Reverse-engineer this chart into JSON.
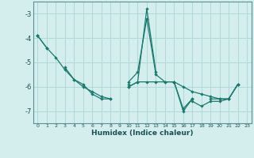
{
  "xlabel": "Humidex (Indice chaleur)",
  "background_color": "#d4eeee",
  "grid_color": "#aed8d8",
  "line_color": "#1a7a6e",
  "x_values": [
    0,
    1,
    2,
    3,
    4,
    5,
    6,
    7,
    8,
    9,
    10,
    11,
    12,
    13,
    14,
    15,
    16,
    17,
    18,
    19,
    20,
    21,
    22,
    23
  ],
  "series1": [
    -3.9,
    -4.4,
    -4.8,
    -5.3,
    -5.7,
    -5.9,
    -6.3,
    -6.5,
    -6.5,
    null,
    -5.8,
    -5.4,
    -3.2,
    -5.5,
    -5.8,
    -5.8,
    -6.9,
    -6.5,
    null,
    null,
    null,
    null,
    null,
    null
  ],
  "series2": [
    -3.9,
    null,
    null,
    -5.2,
    -5.7,
    -6.0,
    -6.2,
    -6.4,
    -6.5,
    null,
    -6.0,
    -5.8,
    -5.8,
    -5.8,
    -5.8,
    -5.8,
    -6.0,
    -6.2,
    -6.3,
    -6.4,
    -6.5,
    -6.5,
    -5.9,
    null
  ],
  "series3": [
    -3.9,
    null,
    null,
    null,
    null,
    null,
    null,
    null,
    null,
    null,
    -5.9,
    null,
    null,
    null,
    null,
    -5.8,
    null,
    -6.6,
    -6.8,
    -6.6,
    -6.6,
    -6.5,
    -5.9,
    null
  ],
  "series4": [
    -3.9,
    -4.4,
    null,
    null,
    null,
    null,
    null,
    null,
    null,
    null,
    -6.0,
    -5.8,
    -2.8,
    -5.4,
    null,
    -5.8,
    -7.0,
    -6.5,
    null,
    -6.5,
    -6.5,
    -6.5,
    -5.9,
    null
  ],
  "ylim": [
    -7.5,
    -2.5
  ],
  "xlim": [
    -0.5,
    23.5
  ],
  "yticks": [
    -7,
    -6,
    -5,
    -4,
    -3
  ],
  "xticks": [
    0,
    1,
    2,
    3,
    4,
    5,
    6,
    7,
    8,
    9,
    10,
    11,
    12,
    13,
    14,
    15,
    16,
    17,
    18,
    19,
    20,
    21,
    22,
    23
  ]
}
